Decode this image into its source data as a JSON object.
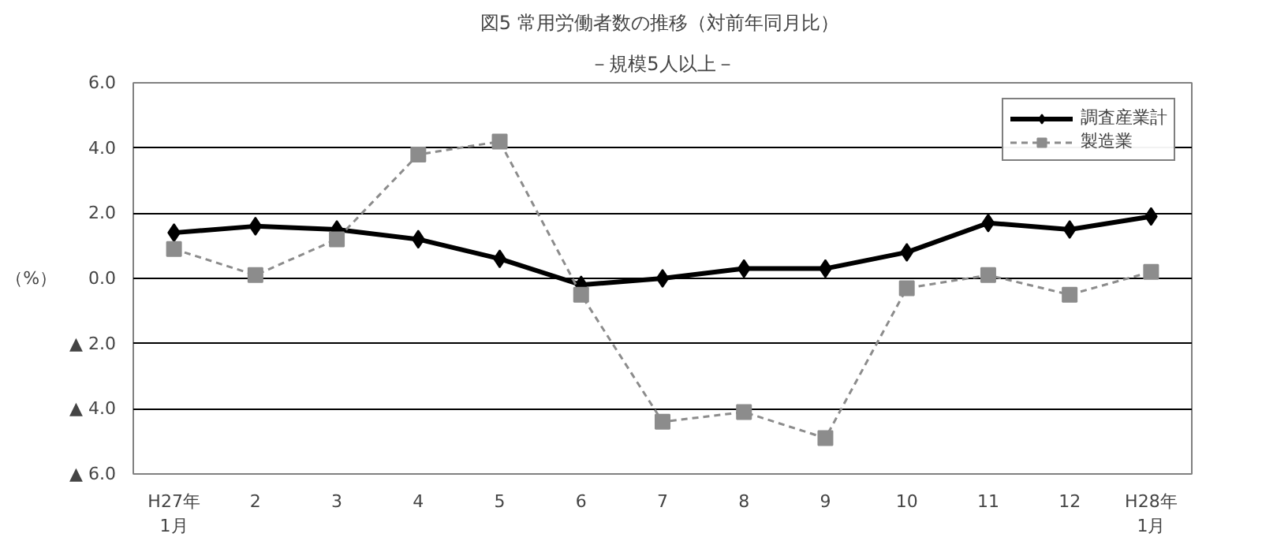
{
  "chart_data": {
    "type": "line",
    "title": "図5  常用労働者数の推移（対前年同月比）",
    "subtitle": "－規模5人以上－",
    "ylabel": "（%）",
    "categories": [
      "H27年\n1月",
      "2",
      "3",
      "4",
      "5",
      "6",
      "7",
      "8",
      "9",
      "10",
      "11",
      "12",
      "H28年\n1月"
    ],
    "series": [
      {
        "name": "調査産業計",
        "color": "#000000",
        "marker": "diamond",
        "line_style": "solid",
        "values": [
          1.4,
          1.6,
          1.5,
          1.2,
          0.6,
          -0.2,
          0.0,
          0.3,
          0.3,
          0.8,
          1.7,
          1.5,
          1.9
        ]
      },
      {
        "name": "製造業",
        "color": "#8c8c8c",
        "marker": "square",
        "line_style": "dashed",
        "values": [
          0.9,
          0.1,
          1.2,
          3.8,
          4.2,
          -0.5,
          -4.4,
          -4.1,
          -4.9,
          -0.3,
          0.1,
          -0.5,
          0.2
        ]
      }
    ],
    "ylim": [
      -6,
      6
    ],
    "yticks": [
      {
        "value": 6,
        "label": "6.0"
      },
      {
        "value": 4,
        "label": "4.0"
      },
      {
        "value": 2,
        "label": "2.0"
      },
      {
        "value": 0,
        "label": "0.0"
      },
      {
        "value": -2,
        "label": "▲ 2.0"
      },
      {
        "value": -4,
        "label": "▲ 4.0"
      },
      {
        "value": -6,
        "label": "▲ 6.0"
      }
    ],
    "grid": "y",
    "legend": "top right"
  }
}
